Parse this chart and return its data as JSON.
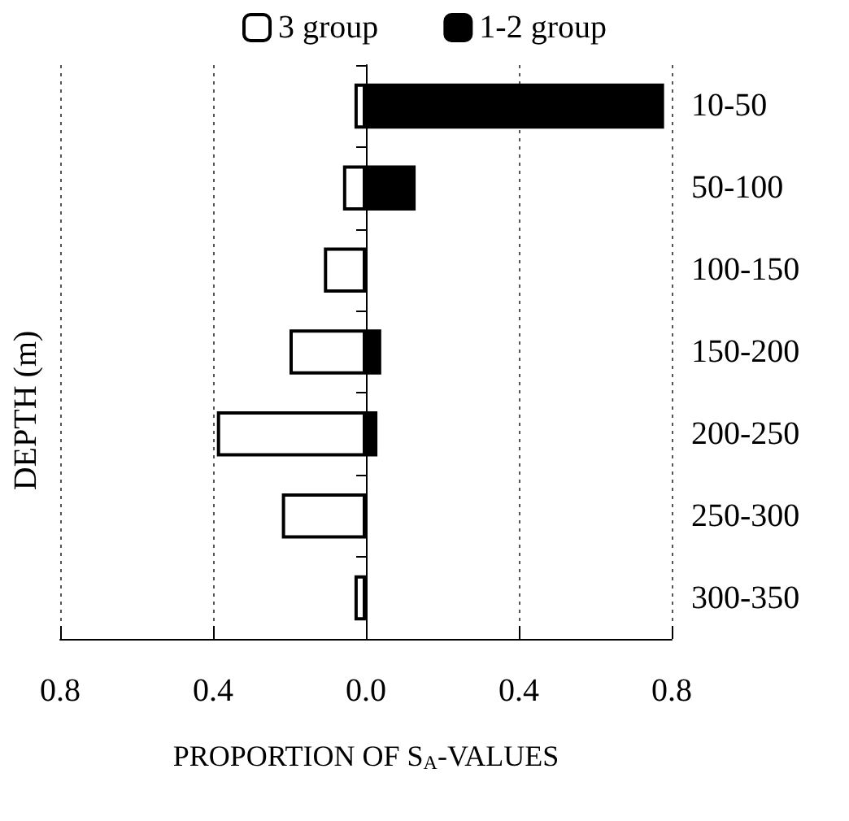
{
  "chart_data": {
    "type": "bar",
    "orientation": "horizontal",
    "stacked": true,
    "xlabel": "PROPORTION OF S$_{A}$-VALUES",
    "ylabel": "DEPTH (m)",
    "categories": [
      "10-50",
      "50-100",
      "100-150",
      "150-200",
      "200-250",
      "250-300",
      "300-350"
    ],
    "series": [
      {
        "name": "3 group",
        "color": "#ffffff",
        "values": [
          -0.03,
          -0.06,
          -0.11,
          -0.2,
          -0.39,
          -0.22,
          -0.03
        ]
      },
      {
        "name": "1-2 group",
        "color": "#000000",
        "values": [
          0.78,
          0.13,
          null,
          0.04,
          0.03,
          null,
          null
        ]
      }
    ],
    "xlim": [
      -0.8,
      0.8
    ],
    "xticks": [
      {
        "value": -0.8,
        "label": "0.8"
      },
      {
        "value": -0.4,
        "label": "0.4"
      },
      {
        "value": 0,
        "label": "0.0"
      },
      {
        "value": 0.4,
        "label": "0.4"
      },
      {
        "value": 0.8,
        "label": "0.8"
      }
    ],
    "grid": "x",
    "legend": "top"
  }
}
